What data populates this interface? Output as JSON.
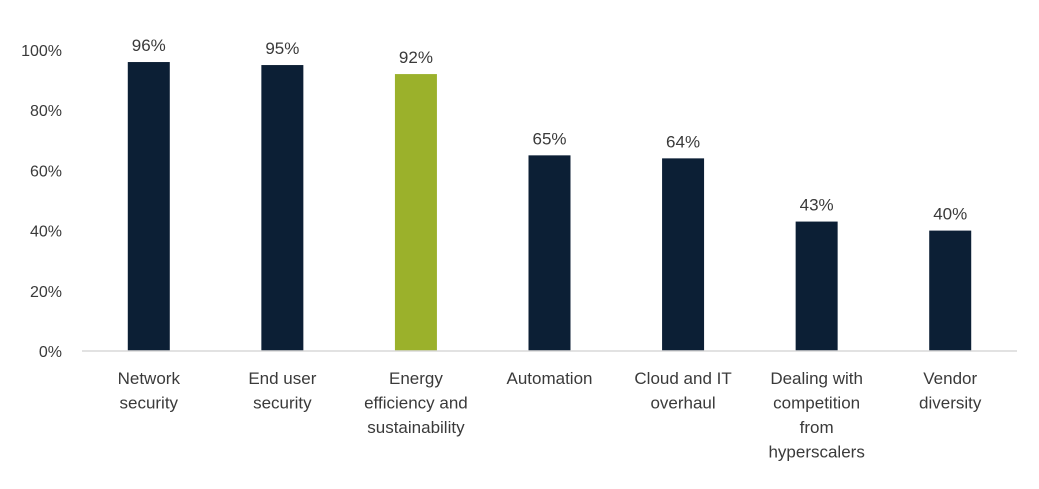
{
  "chart_data": {
    "type": "bar",
    "title": "",
    "xlabel": "",
    "ylabel": "",
    "ylim": [
      0,
      100
    ],
    "yticks": [
      0,
      20,
      40,
      60,
      80,
      100
    ],
    "ytick_labels": [
      "0%",
      "20%",
      "40%",
      "60%",
      "80%",
      "100%"
    ],
    "grid": false,
    "legend": "none",
    "categories": [
      [
        "Network",
        "security"
      ],
      [
        "End user",
        "security"
      ],
      [
        "Energy",
        "efficiency and",
        "sustainability"
      ],
      [
        "Automation"
      ],
      [
        "Cloud and IT",
        "overhaul"
      ],
      [
        "Dealing with",
        "competition",
        "from",
        "hyperscalers"
      ],
      [
        "Vendor",
        "diversity"
      ]
    ],
    "values": [
      96,
      95,
      92,
      65,
      64,
      43,
      40
    ],
    "value_labels": [
      "96%",
      "95%",
      "92%",
      "65%",
      "64%",
      "43%",
      "40%"
    ],
    "colors": {
      "default": "#0c1f35",
      "highlight": "#9bb12b",
      "axis": "#d9d9d9",
      "text": "#3a3a3a"
    },
    "highlight_index": 2
  }
}
